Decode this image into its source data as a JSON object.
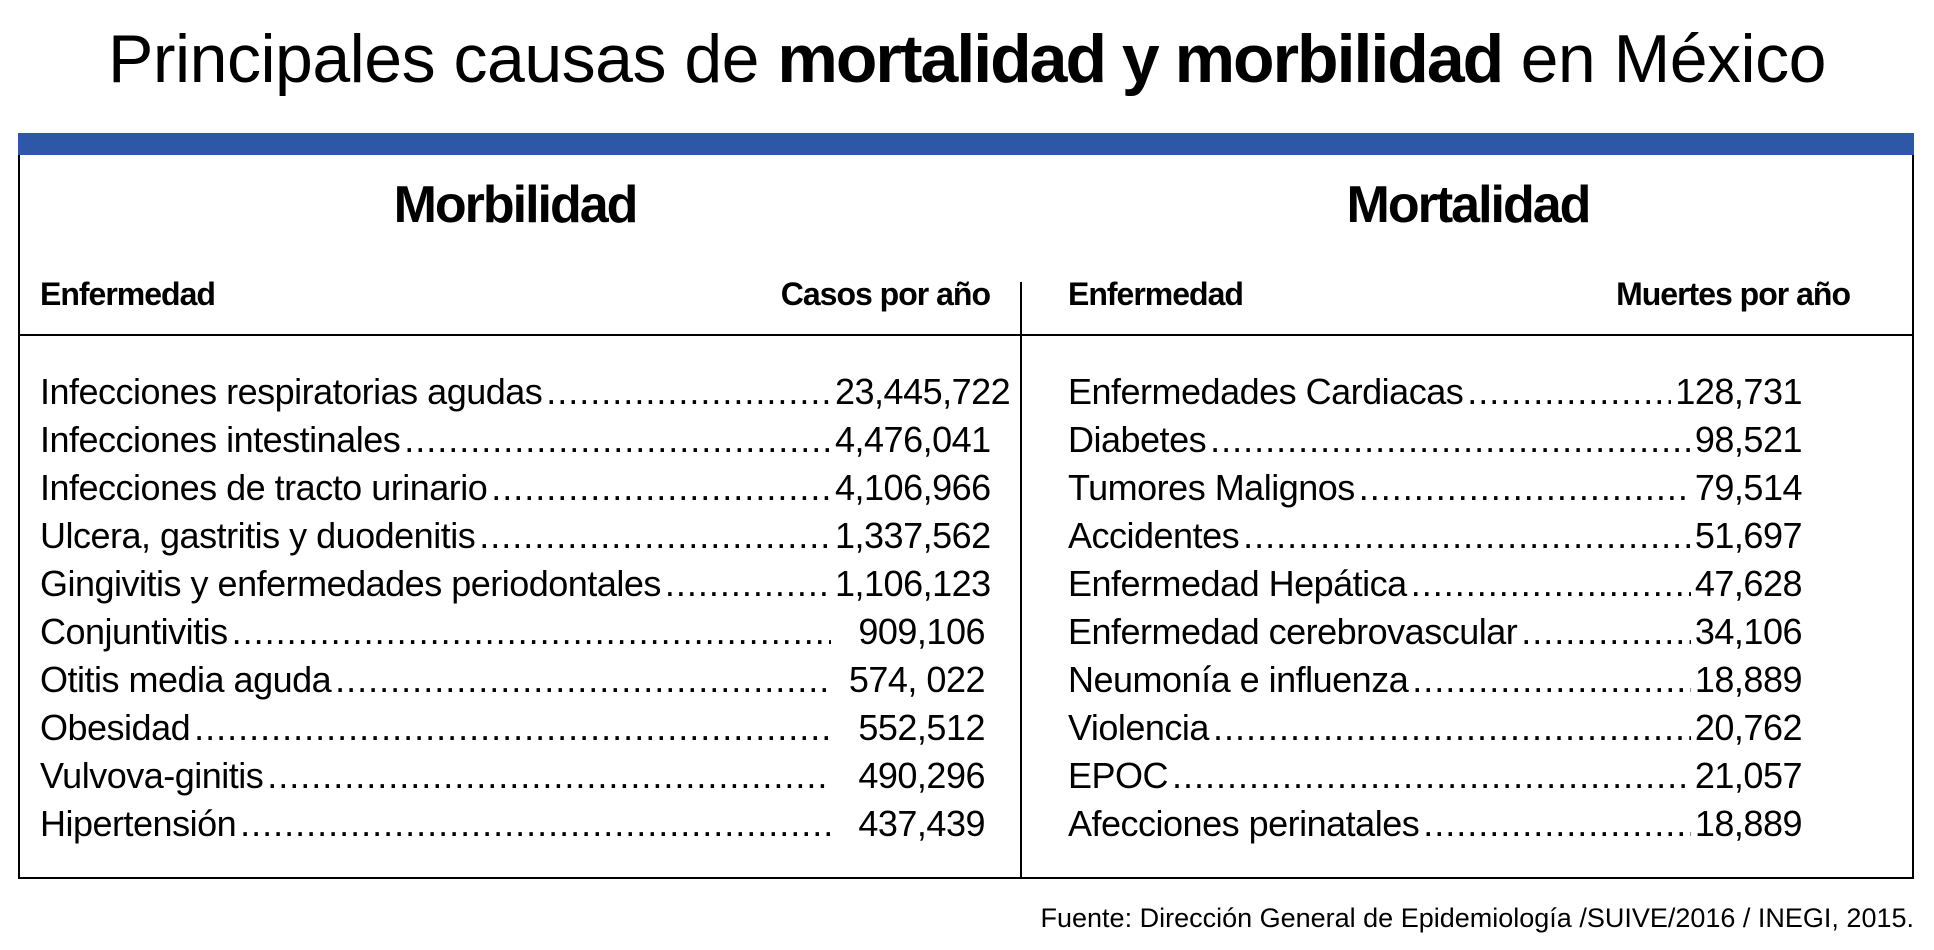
{
  "title": {
    "prefix": "Principales causas de ",
    "bold": "mortalidad y morbilidad",
    "suffix": " en México"
  },
  "colors": {
    "accent_bar": "#2f57a8"
  },
  "morbilidad": {
    "heading": "Morbilidad",
    "col_disease": "Enfermedad",
    "col_value": "Casos por año",
    "rows": [
      {
        "name": "Infecciones respiratorias agudas",
        "value": "23,445,722"
      },
      {
        "name": "Infecciones intestinales",
        "value": "4,476,041"
      },
      {
        "name": "Infecciones de tracto urinario",
        "value": "4,106,966"
      },
      {
        "name": "Ulcera, gastritis y duodenitis",
        "value": "1,337,562"
      },
      {
        "name": "Gingivitis y enfermedades periodontales",
        "value": "1,106,123"
      },
      {
        "name": "Conjuntivitis",
        "value": "909,106"
      },
      {
        "name": "Otitis media aguda",
        "value": "574, 022"
      },
      {
        "name": "Obesidad",
        "value": "552,512"
      },
      {
        "name": "Vulvova-ginitis",
        "value": "490,296"
      },
      {
        "name": "Hipertensión",
        "value": "437,439"
      }
    ]
  },
  "mortalidad": {
    "heading": "Mortalidad",
    "col_disease": "Enfermedad",
    "col_value": "Muertes por año",
    "rows": [
      {
        "name": "Enfermedades Cardiacas",
        "value": "128,731"
      },
      {
        "name": "Diabetes",
        "value": "98,521"
      },
      {
        "name": "Tumores Malignos",
        "value": "79,514"
      },
      {
        "name": "Accidentes",
        "value": "51,697"
      },
      {
        "name": "Enfermedad Hepática",
        "value": "47,628"
      },
      {
        "name": "Enfermedad cerebrovascular",
        "value": "34,106"
      },
      {
        "name": "Neumonía e influenza",
        "value": "18,889"
      },
      {
        "name": "Violencia",
        "value": "20,762"
      },
      {
        "name": "EPOC",
        "value": "21,057"
      },
      {
        "name": "Afecciones perinatales",
        "value": "18,889"
      }
    ]
  },
  "source": "Fuente: Dirección General de Epidemiología /SUIVE/2016 / INEGI, 2015."
}
